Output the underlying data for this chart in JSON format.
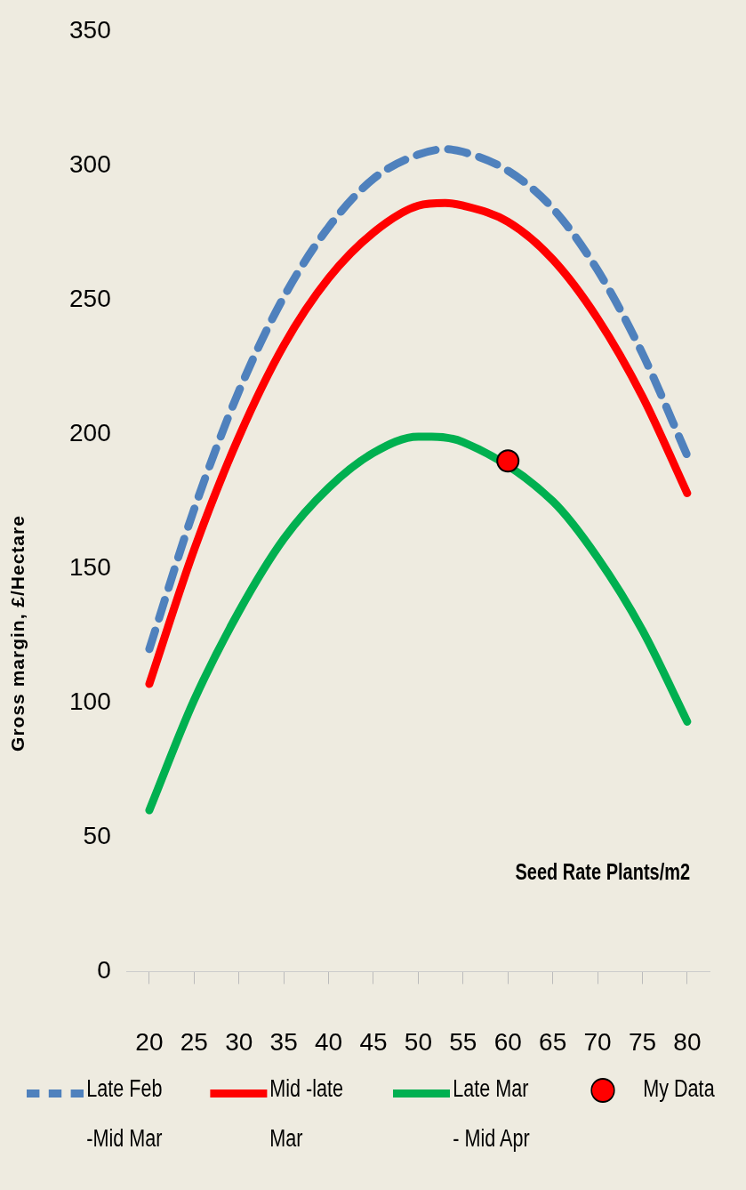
{
  "chart_data": {
    "type": "line",
    "xlabel": "Seed Rate Plants/m2",
    "ylabel": "Gross margin, £/Hectare",
    "xlim": [
      17.5,
      82.5
    ],
    "xticks": [
      20,
      25,
      30,
      35,
      40,
      45,
      50,
      55,
      60,
      65,
      70,
      75,
      80
    ],
    "ylim": [
      0,
      350
    ],
    "yticks": [
      0,
      50,
      100,
      150,
      200,
      250,
      300,
      350
    ],
    "grid": false,
    "legend": "bottom",
    "series": [
      {
        "name": "Late Feb -Mid Mar",
        "color": "#4f81bd",
        "line_style": "dashed",
        "x": [
          20,
          25,
          30,
          35,
          40,
          45,
          50,
          53,
          55,
          60,
          65,
          70,
          75,
          80
        ],
        "values": [
          120,
          172,
          216,
          251,
          277,
          295,
          304,
          306,
          305,
          298,
          284,
          261,
          230,
          192
        ]
      },
      {
        "name": "Mid -late Mar",
        "color": "#ff0000",
        "line_style": "solid",
        "x": [
          20,
          25,
          30,
          35,
          40,
          45,
          50,
          53,
          55,
          60,
          65,
          70,
          75,
          80
        ],
        "values": [
          107,
          157,
          199,
          233,
          258,
          275,
          285,
          286,
          285,
          279,
          265,
          243,
          214,
          178
        ]
      },
      {
        "name": "Late Mar - Mid Apr",
        "color": "#00b050",
        "line_style": "solid",
        "x": [
          20,
          25,
          30,
          35,
          40,
          45,
          50,
          51.5,
          55,
          65,
          70,
          75,
          80
        ],
        "values": [
          60,
          101,
          134,
          161,
          180,
          193,
          199,
          199,
          197,
          175,
          154,
          127,
          93
        ]
      },
      {
        "name": "My Data",
        "type": "scatter",
        "color": "#ff0000",
        "marker": "circle",
        "x": [
          60
        ],
        "values": [
          190
        ]
      }
    ]
  }
}
